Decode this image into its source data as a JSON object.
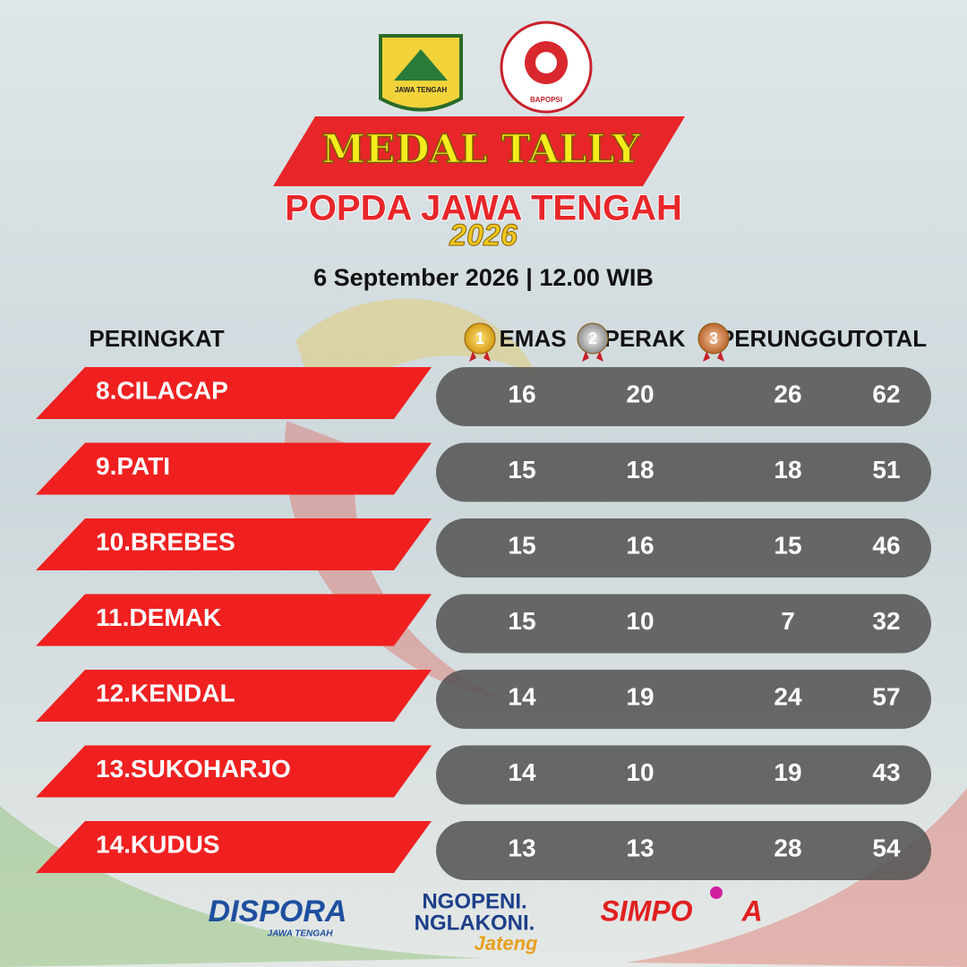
{
  "header": {
    "title": "MEDAL TALLY",
    "subtitle": "POPDA JAWA TENGAH",
    "year": "2026",
    "date": "6 September 2026 | 12.00 WIB",
    "logo_left": "JAWA TENGAH",
    "logo_right": "BAPOPSI"
  },
  "table": {
    "columns": [
      "PERINGKAT",
      "EMAS",
      "PERAK",
      "PERUNGGU",
      "TOTAL"
    ],
    "medal_icons": [
      "1",
      "2",
      "3"
    ],
    "rows": [
      [
        "8.CILACAP",
        16,
        20,
        26,
        62
      ],
      [
        "9.PATI",
        15,
        18,
        18,
        51
      ],
      [
        "10.BREBES",
        15,
        16,
        15,
        46
      ],
      [
        "11.DEMAK",
        15,
        10,
        7,
        32
      ],
      [
        "12.KENDAL",
        14,
        19,
        24,
        57
      ],
      [
        "13.SUKOHARJO",
        14,
        10,
        19,
        43
      ],
      [
        "14.KUDUS",
        13,
        13,
        28,
        54
      ]
    ]
  },
  "footer": {
    "dispora": "DISPORA",
    "dispora_sub": "JAWA TENGAH",
    "ngopeni": "NGOPENI.",
    "nglakoni": "NGLAKONI.",
    "jateng": "Jateng",
    "simpora_a": "SIMPO",
    "simpora_b": "A"
  }
}
